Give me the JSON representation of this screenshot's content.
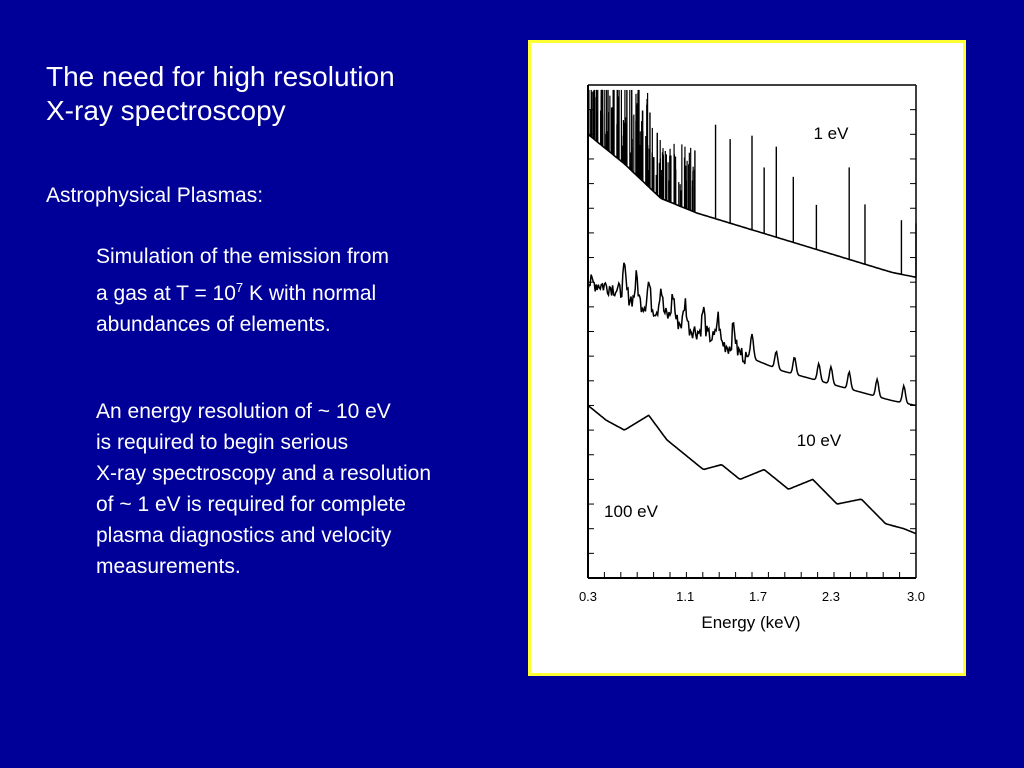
{
  "slide": {
    "title_lines": [
      "The need for high resolution",
      "X-ray spectroscopy"
    ],
    "subhead": "Astrophysical Plasmas:",
    "para1": {
      "line1": "Simulation of the emission from",
      "line2_pre": "a gas at T = 10",
      "line2_sup": "7",
      "line2_post": " K with normal",
      "line3": "abundances of elements."
    },
    "para2": [
      "An energy resolution of ~ 10 eV",
      "is required to begin serious",
      "X-ray spectroscopy and a resolution",
      "of ~ 1 eV is required for complete",
      "plasma diagnostics and velocity",
      "measurements."
    ]
  },
  "colors": {
    "background": "#000099",
    "text": "#ffffff",
    "panel_border": "#ffff33",
    "panel_bg": "#ffffff",
    "plot_ink": "#000000"
  },
  "chart_data": {
    "type": "line",
    "title": "",
    "xlabel": "Energy (keV)",
    "ylabel": "",
    "xlim": [
      0.3,
      3.0
    ],
    "xticks": [
      "0.3",
      "1.1",
      "1.7",
      "2.3",
      "3.0"
    ],
    "grid": false,
    "legend": "none",
    "series": [
      {
        "name": "1 eV",
        "description_points": [
          [
            0.3,
            0.9
          ],
          [
            0.6,
            0.84
          ],
          [
            0.9,
            0.77
          ],
          [
            1.2,
            0.74
          ],
          [
            1.6,
            0.71
          ],
          [
            2.0,
            0.68
          ],
          [
            2.4,
            0.65
          ],
          [
            2.8,
            0.62
          ],
          [
            3.0,
            0.61
          ]
        ],
        "lines_at": [
          0.35,
          0.42,
          0.5,
          0.55,
          0.62,
          0.66,
          0.7,
          0.75,
          0.81,
          0.87,
          0.92,
          1.02,
          1.18,
          1.35,
          1.47,
          1.65,
          1.75,
          1.85,
          1.99,
          2.18,
          2.45,
          2.58,
          2.88,
          3.0
        ]
      },
      {
        "name": "10 eV",
        "description_points": [
          [
            0.3,
            0.6
          ],
          [
            0.5,
            0.59
          ],
          [
            0.7,
            0.56
          ],
          [
            0.9,
            0.54
          ],
          [
            1.1,
            0.51
          ],
          [
            1.3,
            0.49
          ],
          [
            1.6,
            0.45
          ],
          [
            1.9,
            0.42
          ],
          [
            2.2,
            0.4
          ],
          [
            2.5,
            0.38
          ],
          [
            2.8,
            0.36
          ],
          [
            3.0,
            0.35
          ]
        ],
        "peaks_at": [
          0.6,
          0.7,
          0.8,
          0.9,
          1.0,
          1.1,
          1.25,
          1.37,
          1.5,
          1.65,
          1.85,
          2.0,
          2.2,
          2.3,
          2.45,
          2.68,
          2.9
        ]
      },
      {
        "name": "100 eV",
        "description_points": [
          [
            0.3,
            0.35
          ],
          [
            0.45,
            0.32
          ],
          [
            0.6,
            0.3
          ],
          [
            0.8,
            0.33
          ],
          [
            0.95,
            0.28
          ],
          [
            1.1,
            0.25
          ],
          [
            1.25,
            0.22
          ],
          [
            1.4,
            0.23
          ],
          [
            1.55,
            0.2
          ],
          [
            1.75,
            0.22
          ],
          [
            1.95,
            0.18
          ],
          [
            2.15,
            0.2
          ],
          [
            2.35,
            0.15
          ],
          [
            2.55,
            0.16
          ],
          [
            2.75,
            0.11
          ],
          [
            2.9,
            0.1
          ],
          [
            3.0,
            0.09
          ]
        ]
      }
    ]
  }
}
